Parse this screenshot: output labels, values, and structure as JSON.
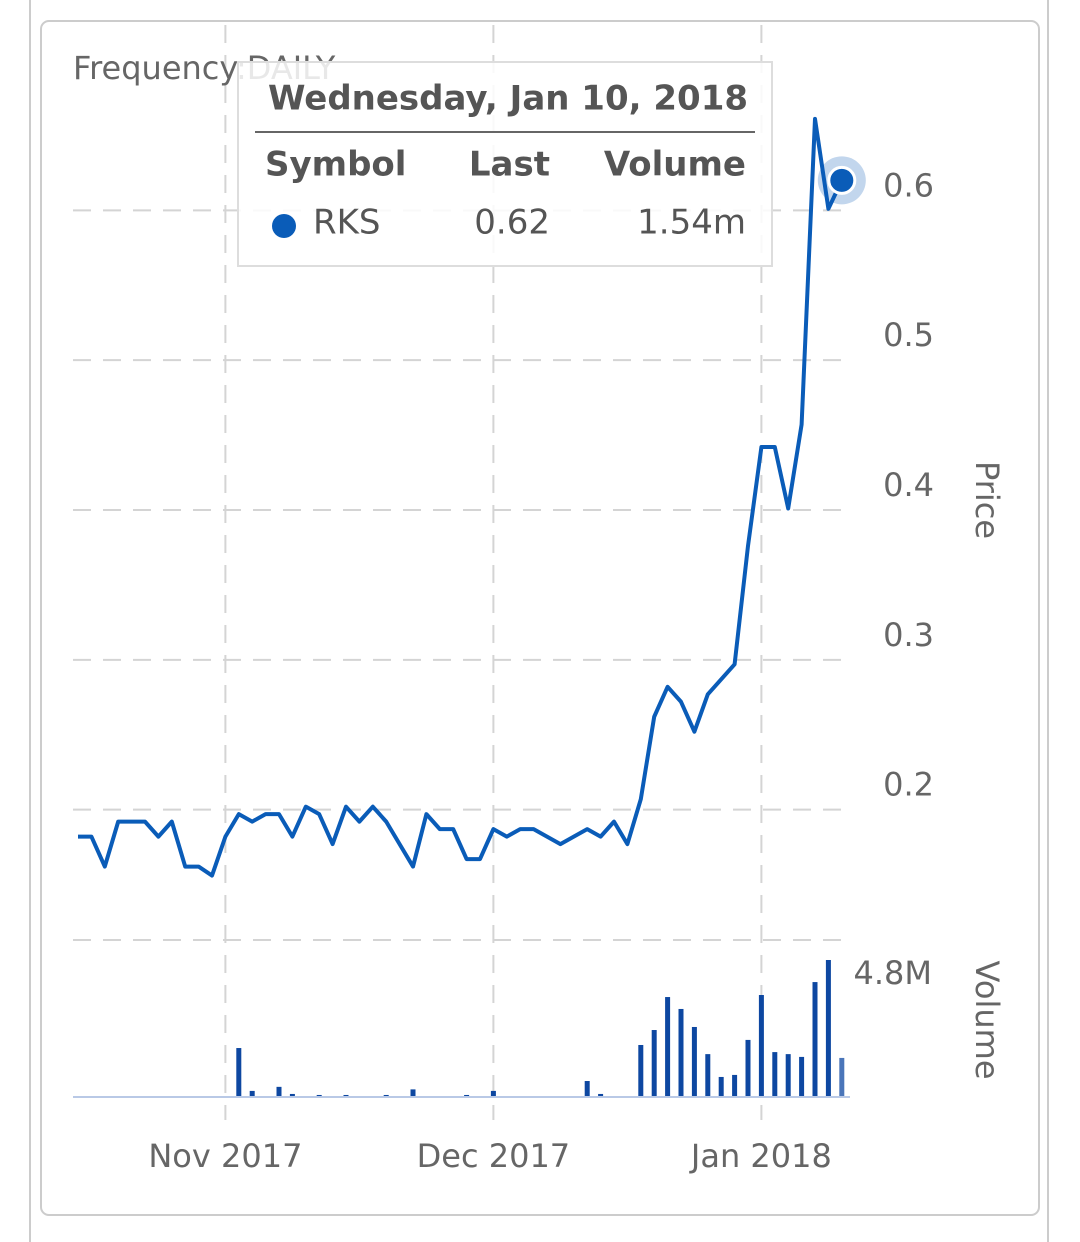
{
  "chart_data": {
    "type": "line",
    "frequency": "Frequency:DAILY",
    "ylabel": "Price",
    "y2label": "Volume",
    "categories": [
      null,
      null,
      null,
      null,
      null,
      null,
      null,
      null,
      null,
      null,
      null,
      "Nov 2017",
      null,
      null,
      null,
      null,
      null,
      null,
      null,
      null,
      null,
      null,
      null,
      null,
      null,
      null,
      null,
      null,
      null,
      null,
      null,
      "Dec 2017",
      null,
      null,
      null,
      null,
      null,
      null,
      null,
      null,
      null,
      null,
      null,
      null,
      null,
      null,
      null,
      null,
      null,
      null,
      null,
      "Jan 2018",
      null,
      null,
      null,
      null,
      null,
      null
    ],
    "series": [
      {
        "name": "RKS",
        "color": "#0a5cb8",
        "values": [
          0.182,
          0.182,
          0.162,
          0.192,
          0.192,
          0.192,
          0.182,
          0.192,
          0.162,
          0.162,
          0.156,
          0.182,
          0.197,
          0.192,
          0.197,
          0.197,
          0.182,
          0.202,
          0.197,
          0.177,
          0.202,
          0.192,
          0.202,
          0.192,
          0.177,
          0.162,
          0.197,
          0.187,
          0.187,
          0.167,
          0.167,
          0.187,
          0.182,
          0.187,
          0.187,
          0.182,
          0.177,
          0.182,
          0.187,
          0.182,
          0.192,
          0.177,
          0.207,
          0.262,
          0.282,
          0.272,
          0.252,
          0.277,
          0.287,
          0.297,
          0.376,
          0.442,
          0.442,
          0.401,
          0.457,
          0.661,
          0.601,
          0.62
        ]
      }
    ],
    "volume": {
      "color": "#0d47a1",
      "axis": "y2",
      "values": [
        0,
        0,
        0,
        0,
        0,
        0,
        0,
        0,
        0,
        0,
        0,
        0,
        1930000,
        240000,
        0,
        400000,
        120000,
        0,
        80000,
        0,
        80000,
        0,
        0,
        80000,
        0,
        300000,
        0,
        0,
        0,
        80000,
        0,
        240000,
        0,
        0,
        0,
        0,
        0,
        0,
        630000,
        120000,
        0,
        0,
        2050000,
        2640000,
        3940000,
        3470000,
        2760000,
        1690000,
        790000,
        870000,
        2250000,
        4020000,
        1770000,
        1690000,
        1580000,
        4530000,
        5400000,
        1540000
      ]
    },
    "ylim": [
      0.113,
      0.707
    ],
    "yticks": [
      0.2,
      0.3,
      0.4,
      0.5,
      0.6
    ],
    "y2lim": [
      0,
      5400000
    ],
    "y2ticks": [
      {
        "value": 4800000,
        "label": "4.8M"
      }
    ],
    "grid": true,
    "tooltip": {
      "date": "Wednesday, Jan 10, 2018",
      "headers": [
        "Symbol",
        "Last",
        "Volume"
      ],
      "volume": "1.54m"
    }
  }
}
